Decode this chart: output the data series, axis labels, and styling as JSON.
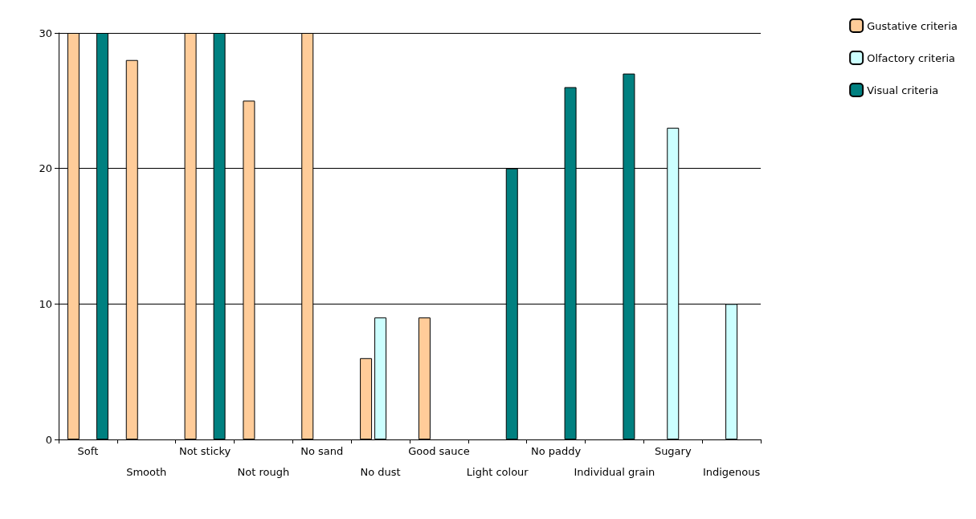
{
  "chart_data": {
    "type": "bar",
    "categories": [
      "Soft",
      "Smooth",
      "Not sticky",
      "Not rough",
      "No sand",
      "No dust",
      "Good sauce",
      "Light colour",
      "No paddy",
      "Individual grain",
      "Sugary",
      "Indigenous"
    ],
    "series": [
      {
        "name": "Gustative criteria",
        "color": "#ffcc99",
        "values": [
          30,
          28,
          30,
          25,
          30,
          6,
          9,
          null,
          null,
          null,
          null,
          null
        ]
      },
      {
        "name": "Olfactory criteria",
        "color": "#ccffff",
        "values": [
          null,
          null,
          null,
          null,
          null,
          9,
          null,
          null,
          null,
          null,
          23,
          10
        ]
      },
      {
        "name": "Visual criteria",
        "color": "#008080",
        "values": [
          30,
          null,
          30,
          null,
          null,
          null,
          null,
          20,
          26,
          27,
          null,
          null
        ]
      }
    ],
    "ylim": [
      0,
      30
    ],
    "yticks": [
      0,
      10,
      20,
      30
    ],
    "grid": "y",
    "legend": "top right"
  }
}
